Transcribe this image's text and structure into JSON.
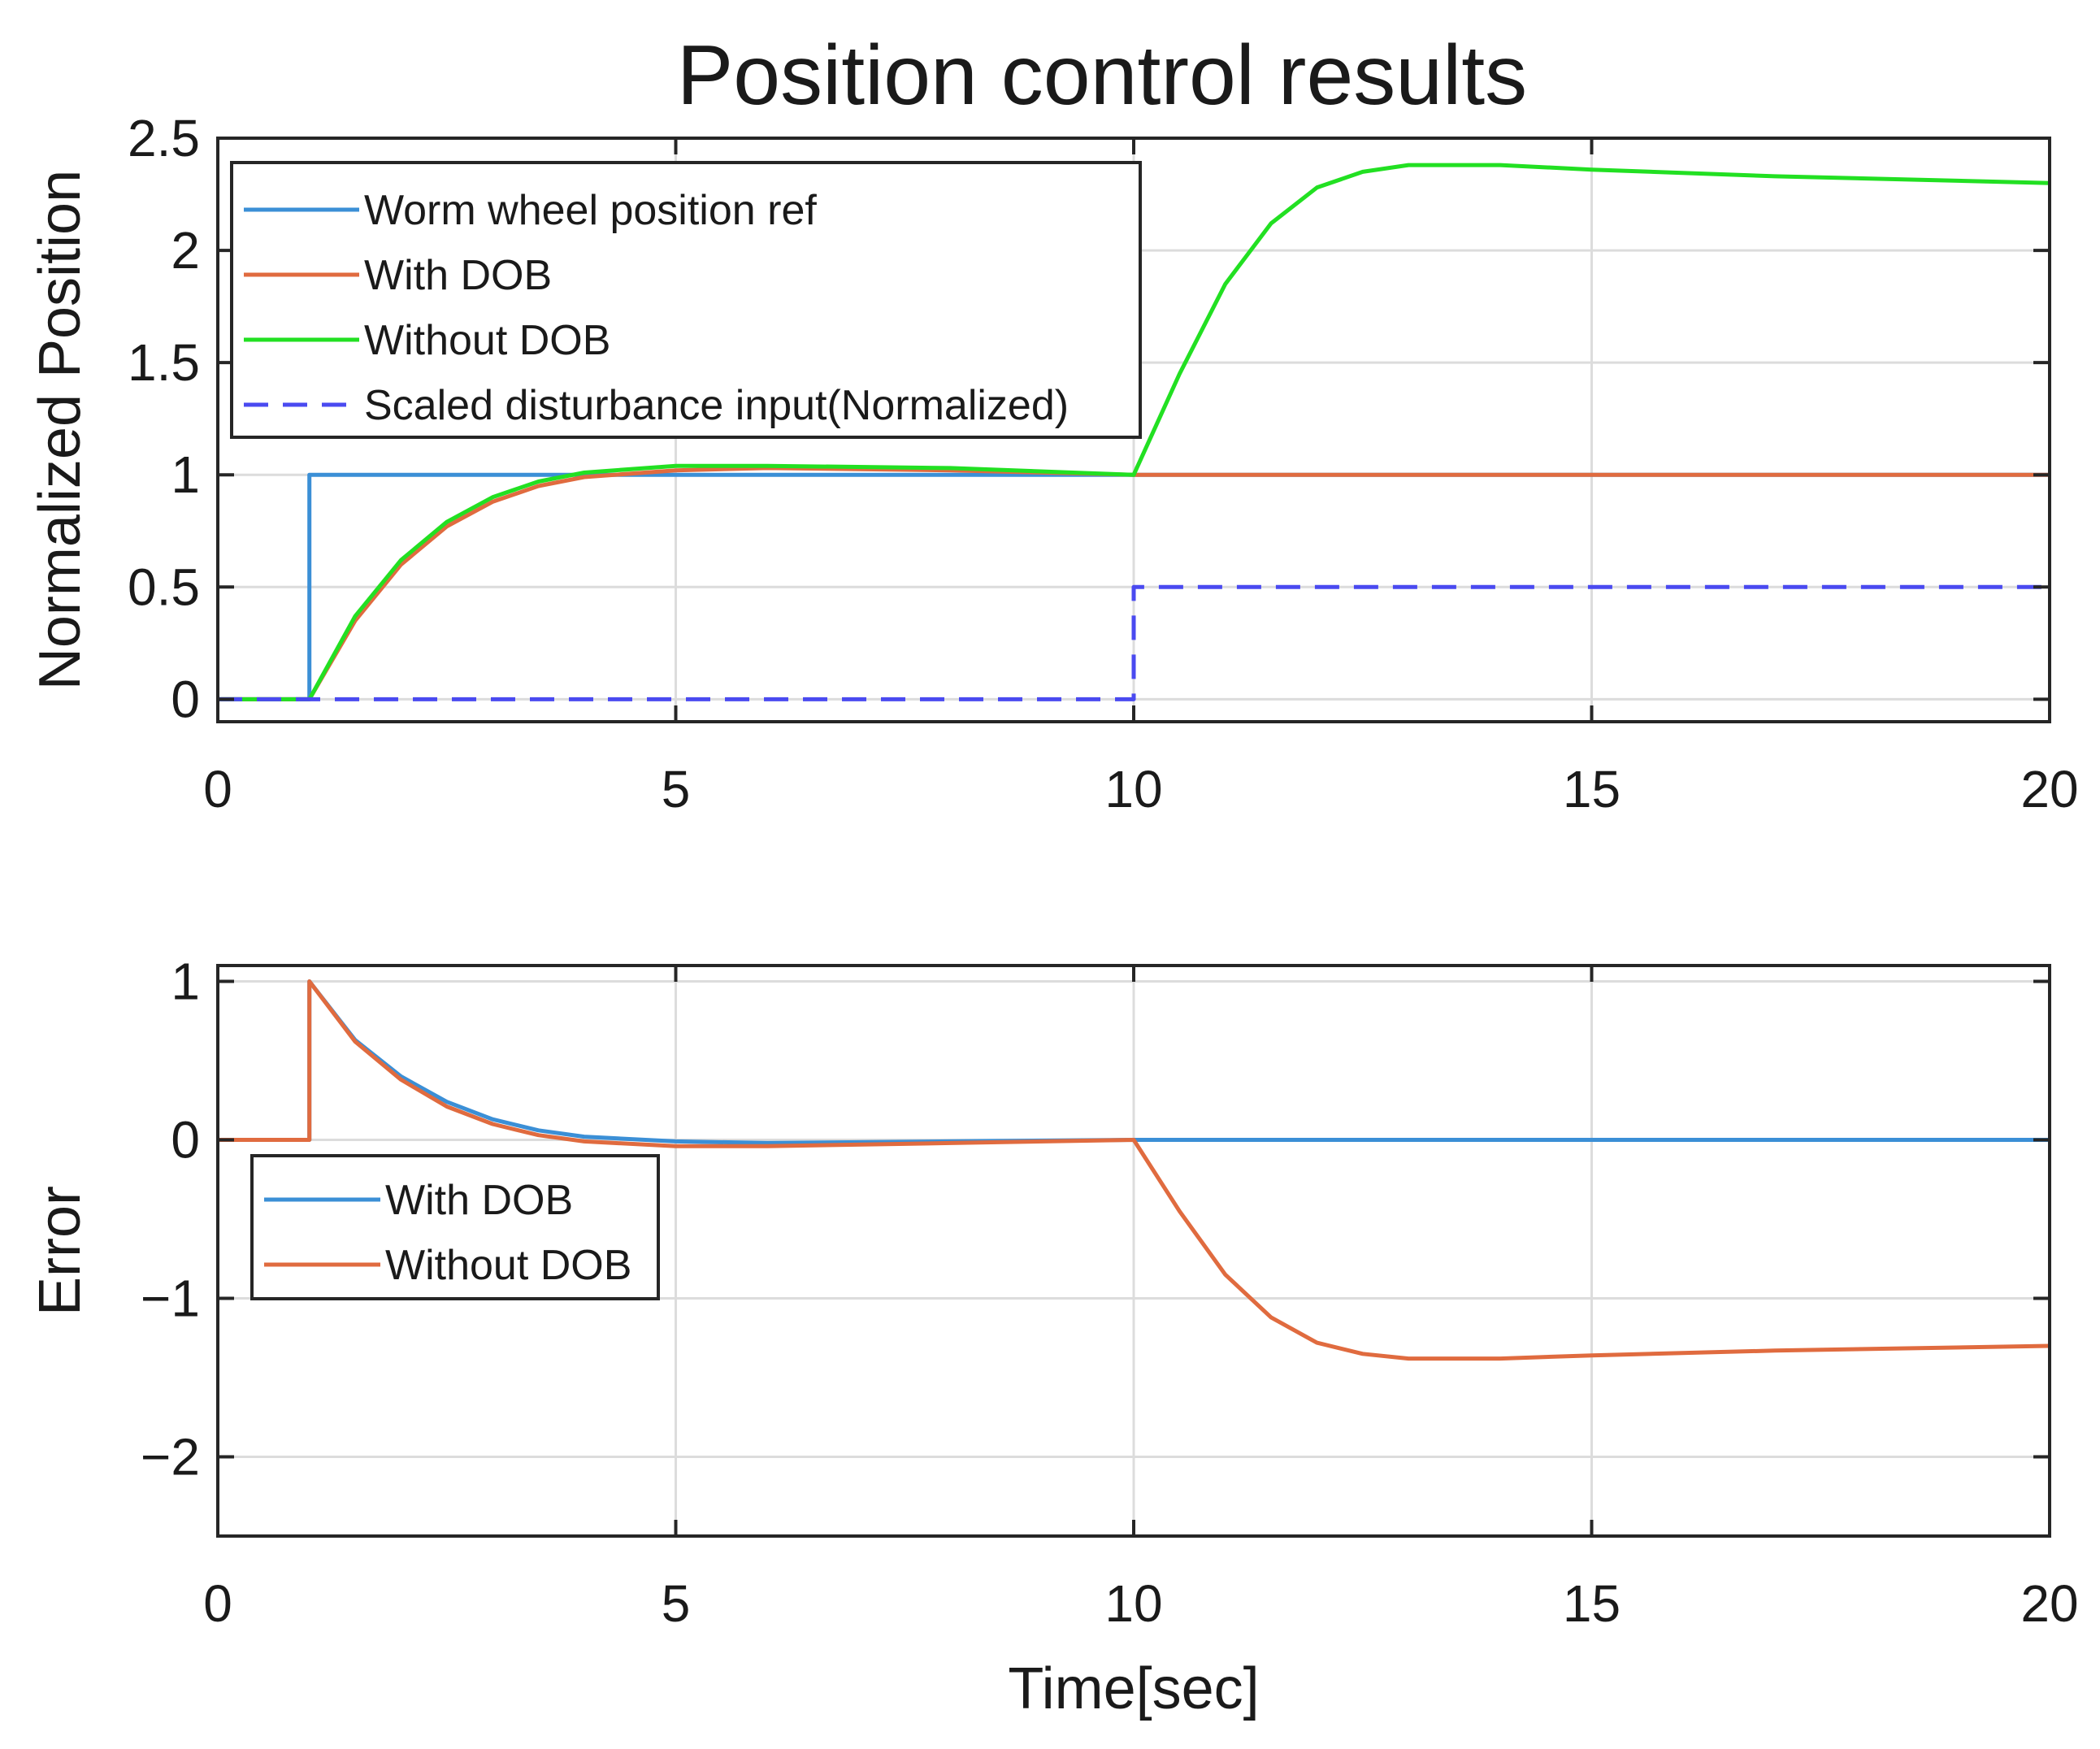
{
  "chart_data": [
    {
      "type": "line",
      "title": "Position control results",
      "xlabel": "",
      "ylabel": "Normalized  Position",
      "xlim": [
        0,
        20
      ],
      "ylim": [
        -0.1,
        2.5
      ],
      "xticks": [
        0,
        5,
        10,
        15,
        20
      ],
      "yticks": [
        0,
        0.5,
        1,
        1.5,
        2,
        2.5
      ],
      "xtick_labels": [
        "0",
        "5",
        "10",
        "15",
        "20"
      ],
      "ytick_labels": [
        "0",
        "0.5",
        "1",
        "1.5",
        "2",
        "2.5"
      ],
      "grid": true,
      "legend_position": "top-left",
      "series": [
        {
          "name": "Worm wheel position ref",
          "color": "#3b8fd6",
          "style": "solid",
          "x": [
            0,
            1,
            1,
            20
          ],
          "y": [
            0,
            0,
            1,
            1
          ]
        },
        {
          "name": "With DOB",
          "color": "#e06b3f",
          "style": "solid",
          "x": [
            0,
            1,
            1.5,
            2,
            2.5,
            3,
            3.5,
            4,
            5,
            6,
            8,
            10,
            12,
            15,
            20
          ],
          "y": [
            0,
            0,
            0.35,
            0.6,
            0.77,
            0.88,
            0.95,
            0.99,
            1.02,
            1.03,
            1.02,
            1.0,
            1.0,
            1.0,
            1.0
          ]
        },
        {
          "name": "Without DOB",
          "color": "#22e022",
          "style": "solid",
          "x": [
            0,
            1,
            1.5,
            2,
            2.5,
            3,
            3.5,
            4,
            5,
            6,
            8,
            10,
            10.5,
            11,
            11.5,
            12,
            12.5,
            13,
            14,
            15,
            17,
            20
          ],
          "y": [
            0,
            0,
            0.37,
            0.62,
            0.79,
            0.9,
            0.97,
            1.01,
            1.04,
            1.04,
            1.03,
            1.0,
            1.45,
            1.85,
            2.12,
            2.28,
            2.35,
            2.38,
            2.38,
            2.36,
            2.33,
            2.3
          ]
        },
        {
          "name": "Scaled disturbance input(Normalized)",
          "color": "#4a4af0",
          "style": "dashed",
          "x": [
            0,
            10,
            10,
            20
          ],
          "y": [
            0,
            0,
            0.5,
            0.5
          ]
        }
      ]
    },
    {
      "type": "line",
      "title": "",
      "xlabel": "Time[sec]",
      "ylabel": "Error",
      "xlim": [
        0,
        20
      ],
      "ylim": [
        -2.5,
        1.1
      ],
      "xticks": [
        0,
        5,
        10,
        15,
        20
      ],
      "yticks": [
        -2,
        -1,
        0,
        1
      ],
      "xtick_labels": [
        "0",
        "5",
        "10",
        "15",
        "20"
      ],
      "ytick_labels": [
        "−2",
        "−1",
        "0",
        "1"
      ],
      "grid": true,
      "legend_position": "middle-left",
      "series": [
        {
          "name": "With DOB",
          "color": "#3b8fd6",
          "style": "solid",
          "x": [
            0,
            1,
            1,
            1.5,
            2,
            2.5,
            3,
            3.5,
            4,
            5,
            6,
            8,
            10,
            12,
            15,
            20
          ],
          "y": [
            0,
            0,
            1,
            0.63,
            0.4,
            0.24,
            0.13,
            0.06,
            0.02,
            -0.01,
            -0.02,
            -0.01,
            0,
            0,
            0,
            0
          ]
        },
        {
          "name": "Without DOB",
          "color": "#e06b3f",
          "style": "solid",
          "x": [
            0,
            1,
            1,
            1.5,
            2,
            2.5,
            3,
            3.5,
            4,
            5,
            6,
            8,
            10,
            10.5,
            11,
            11.5,
            12,
            12.5,
            13,
            14,
            15,
            17,
            20
          ],
          "y": [
            0,
            0,
            1,
            0.62,
            0.38,
            0.21,
            0.1,
            0.03,
            -0.01,
            -0.04,
            -0.04,
            -0.02,
            0,
            -0.45,
            -0.85,
            -1.12,
            -1.28,
            -1.35,
            -1.38,
            -1.38,
            -1.36,
            -1.33,
            -1.3
          ]
        }
      ]
    }
  ]
}
